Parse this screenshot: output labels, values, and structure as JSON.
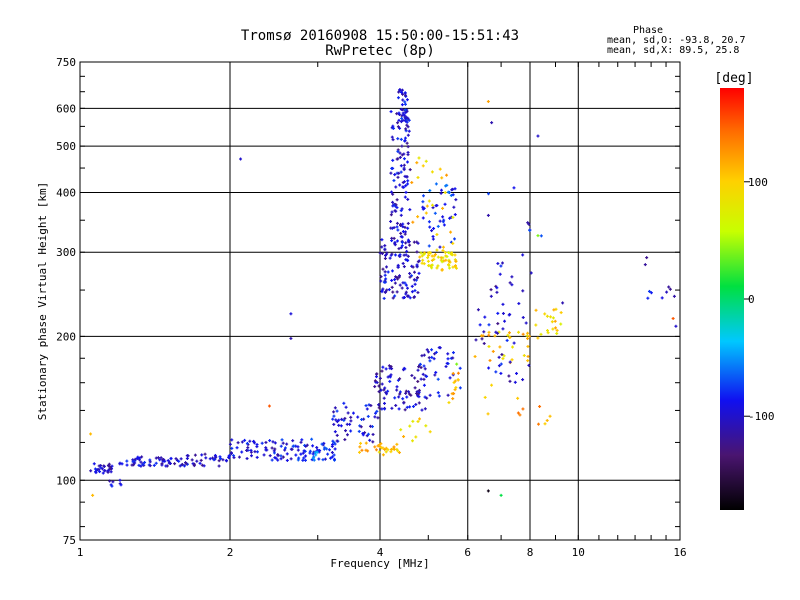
{
  "chart_data": {
    "type": "scatter",
    "title": "Tromsø 20160908 15:50:00-15:51:43",
    "subtitle": "RwPretec (8p)",
    "xlabel": "Frequency [MHz]",
    "ylabel": "Stationary phase Virtual Height [km]",
    "x_scale": "log",
    "y_scale": "log",
    "xlim": [
      1,
      16
    ],
    "ylim": [
      75,
      750
    ],
    "x_ticks": [
      1,
      2,
      4,
      6,
      8,
      10,
      16
    ],
    "y_ticks": [
      75,
      100,
      200,
      300,
      400,
      500,
      600,
      750
    ],
    "x_tick_labels": [
      "1",
      "2",
      "4",
      "6",
      "8",
      "10",
      "16"
    ],
    "y_tick_labels": [
      "75",
      "100",
      "200",
      "300",
      "400",
      "500",
      "600",
      "750"
    ],
    "grid": true,
    "stats": {
      "heading": "Phase",
      "line_o": "mean, sd,O: -93.8, 20.7",
      "line_x": "mean, sd,X:  89.5, 25.8"
    },
    "colorbar": {
      "label": "[deg]",
      "ticks": [
        100,
        0,
        -100
      ],
      "tick_labels": [
        "100",
        "0",
        "-100"
      ],
      "range": [
        -180,
        180
      ]
    },
    "clusters": [
      {
        "x0": 1.05,
        "x1": 1.16,
        "y0": 103,
        "y1": 109,
        "phase": -100,
        "n": 30
      },
      {
        "x0": 1.14,
        "x1": 1.22,
        "y0": 95,
        "y1": 100,
        "phase": -95,
        "n": 7
      },
      {
        "x0": 1.2,
        "x1": 1.6,
        "y0": 107,
        "y1": 112,
        "phase": -100,
        "n": 55
      },
      {
        "x0": 1.6,
        "x1": 2.0,
        "y0": 107,
        "y1": 114,
        "phase": -100,
        "n": 40
      },
      {
        "x0": 2.0,
        "x1": 2.6,
        "y0": 110,
        "y1": 122,
        "phase": -95,
        "n": 60
      },
      {
        "x0": 2.6,
        "x1": 3.3,
        "y0": 110,
        "y1": 122,
        "phase": -90,
        "n": 55
      },
      {
        "x0": 2.8,
        "x1": 3.1,
        "y0": 110,
        "y1": 116,
        "phase": -60,
        "n": 15
      },
      {
        "x0": 3.2,
        "x1": 4.0,
        "y0": 120,
        "y1": 145,
        "phase": -95,
        "n": 55
      },
      {
        "x0": 3.6,
        "x1": 4.4,
        "y0": 113,
        "y1": 120,
        "phase": 110,
        "n": 30
      },
      {
        "x0": 4.4,
        "x1": 5.1,
        "y0": 120,
        "y1": 135,
        "phase": 100,
        "n": 10
      },
      {
        "x0": 3.9,
        "x1": 5.0,
        "y0": 140,
        "y1": 175,
        "phase": -105,
        "n": 90
      },
      {
        "x0": 4.8,
        "x1": 5.8,
        "y0": 150,
        "y1": 190,
        "phase": -90,
        "n": 35
      },
      {
        "x0": 5.5,
        "x1": 5.8,
        "y0": 145,
        "y1": 170,
        "phase": 110,
        "n": 12
      },
      {
        "x0": 4.0,
        "x1": 4.8,
        "y0": 240,
        "y1": 320,
        "phase": -100,
        "n": 120
      },
      {
        "x0": 4.2,
        "x1": 4.6,
        "y0": 320,
        "y1": 600,
        "phase": -100,
        "n": 120
      },
      {
        "x0": 4.35,
        "x1": 4.55,
        "y0": 560,
        "y1": 660,
        "phase": -95,
        "n": 35
      },
      {
        "x0": 4.8,
        "x1": 5.7,
        "y0": 275,
        "y1": 300,
        "phase": 90,
        "n": 60
      },
      {
        "x0": 4.8,
        "x1": 5.7,
        "y0": 300,
        "y1": 420,
        "phase": -80,
        "n": 45
      },
      {
        "x0": 4.6,
        "x1": 5.7,
        "y0": 300,
        "y1": 480,
        "phase": 100,
        "n": 25
      },
      {
        "x0": 6.2,
        "x1": 8.0,
        "y0": 175,
        "y1": 205,
        "phase": 105,
        "n": 30
      },
      {
        "x0": 6.2,
        "x1": 8.0,
        "y0": 160,
        "y1": 260,
        "phase": -100,
        "n": 45
      },
      {
        "x0": 6.3,
        "x1": 8.5,
        "y0": 260,
        "y1": 420,
        "phase": -90,
        "n": 15
      },
      {
        "x0": 8.2,
        "x1": 9.3,
        "y0": 195,
        "y1": 230,
        "phase": 95,
        "n": 20
      },
      {
        "x0": 6.5,
        "x1": 9.0,
        "y0": 130,
        "y1": 160,
        "phase": 120,
        "n": 12
      },
      {
        "x0": 13.6,
        "x1": 15.6,
        "y0": 230,
        "y1": 300,
        "phase": -100,
        "n": 10
      }
    ],
    "points": [
      {
        "x": 2.1,
        "y": 470,
        "phase": -100
      },
      {
        "x": 2.65,
        "y": 223,
        "phase": -95
      },
      {
        "x": 2.65,
        "y": 198,
        "phase": -110
      },
      {
        "x": 2.4,
        "y": 143,
        "phase": 150
      },
      {
        "x": 6.6,
        "y": 620,
        "phase": 120
      },
      {
        "x": 6.7,
        "y": 560,
        "phase": -110
      },
      {
        "x": 6.6,
        "y": 95,
        "phase": -170
      },
      {
        "x": 7.0,
        "y": 93,
        "phase": 10
      },
      {
        "x": 8.3,
        "y": 525,
        "phase": -100
      },
      {
        "x": 8.3,
        "y": 325,
        "phase": 40
      },
      {
        "x": 1.05,
        "y": 125,
        "phase": 110
      },
      {
        "x": 1.06,
        "y": 93,
        "phase": 110
      },
      {
        "x": 15.7,
        "y": 210,
        "phase": -100
      },
      {
        "x": 15.5,
        "y": 218,
        "phase": 150
      },
      {
        "x": 9.3,
        "y": 235,
        "phase": -110
      },
      {
        "x": 5.7,
        "y": 175,
        "phase": 40
      }
    ]
  }
}
